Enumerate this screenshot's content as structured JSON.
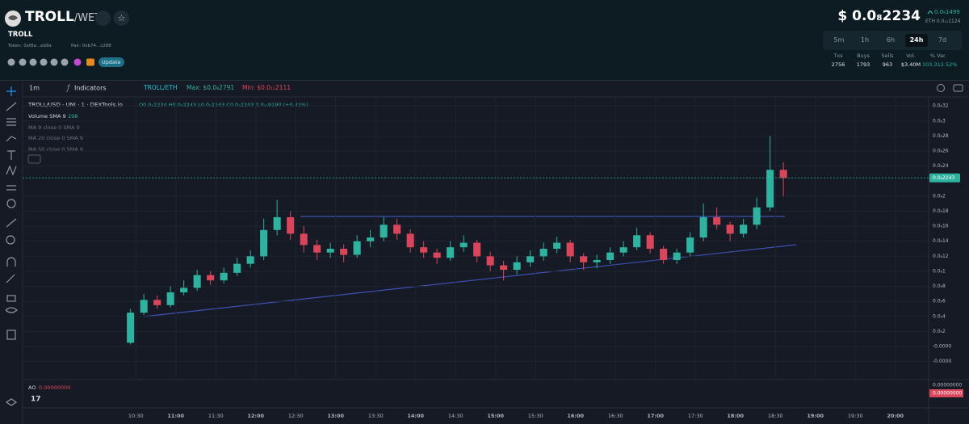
{
  "header": {
    "symbol": "TROLL",
    "quote": "/WETH",
    "name": "TROLL",
    "token": "Token: 0xf8a...eb9a",
    "pair": "Pair: 0xb74...c288",
    "update": "Update",
    "price": "$ 0.0₈2234",
    "change": "0.0₉1499",
    "eth_price": "ETH 0.0₁₂1124",
    "timeframes": [
      "5m",
      "1h",
      "6h",
      "24h",
      "7d"
    ],
    "active_timeframe": "24h",
    "stats": [
      {
        "label": "Txs",
        "value": "2756"
      },
      {
        "label": "Buys",
        "value": "1793"
      },
      {
        "label": "Sells",
        "value": "963"
      },
      {
        "label": "Vol.",
        "value": "$3.40M"
      },
      {
        "label": "% Var.",
        "value": "103,312.52%"
      }
    ]
  },
  "toolbar": {
    "interval": "1m",
    "indicators": "Indicators",
    "pair": "TROLL/ETH",
    "max": "Max: $0.0₈2791",
    "min": "Min: $0.0₁₁2111"
  },
  "legend": {
    "source": "TROLL/USD · UNI · 1 · DEXTools.io",
    "ohlc": "O0.0₈2234 H0.0₈2243 L0.0₈2243 C0.0₈2243 0.0₁₁9190 (+0.41%)",
    "volume": "Volume SMA 9",
    "volume_value": "198",
    "ma9": "MA 9 close 0 SMA 9",
    "ma20": "MA 20 close 0 SMA 9",
    "ma50": "MA 50 close 0 SMA 9"
  },
  "ao": {
    "label": "AO",
    "value": "0.00000000",
    "axis_label": "0.00000000",
    "axis_tag": "0.00000000"
  },
  "chart_data": {
    "type": "candlestick",
    "x": [
      "10:26",
      "10:36",
      "10:46",
      "10:56",
      "11:06",
      "11:16",
      "11:26",
      "11:36",
      "11:46",
      "11:56",
      "12:06",
      "12:16",
      "12:26",
      "12:36",
      "12:46",
      "12:56",
      "13:06",
      "13:16",
      "13:26",
      "13:36",
      "13:46",
      "13:56",
      "14:06",
      "14:16",
      "14:26",
      "14:36",
      "14:46",
      "14:56",
      "15:06",
      "15:16",
      "15:26",
      "15:36",
      "15:46",
      "15:56",
      "16:06",
      "16:16",
      "16:26",
      "16:36",
      "16:46",
      "16:56",
      "17:06",
      "17:16",
      "17:26",
      "17:36",
      "17:46",
      "17:56",
      "18:06",
      "18:16",
      "18:26",
      "18:36"
    ],
    "open": [
      5e-11,
      4.5e-10,
      6.2e-10,
      5.5e-10,
      7.2e-10,
      7.8e-10,
      9.5e-10,
      8.8e-10,
      9.8e-10,
      1.1e-09,
      1.2e-09,
      1.55e-09,
      1.72e-09,
      1.5e-09,
      1.35e-09,
      1.25e-09,
      1.3e-09,
      1.22e-09,
      1.4e-09,
      1.45e-09,
      1.62e-09,
      1.5e-09,
      1.32e-09,
      1.25e-09,
      1.18e-09,
      1.32e-09,
      1.38e-09,
      1.2e-09,
      1.08e-09,
      1.02e-09,
      1.12e-09,
      1.2e-09,
      1.3e-09,
      1.38e-09,
      1.2e-09,
      1.12e-09,
      1.15e-09,
      1.25e-09,
      1.32e-09,
      1.48e-09,
      1.3e-09,
      1.15e-09,
      1.25e-09,
      1.45e-09,
      1.72e-09,
      1.62e-09,
      1.5e-09,
      1.62e-09,
      1.85e-09,
      2.35e-09
    ],
    "high": [
      5e-10,
      7e-10,
      6.8e-10,
      8e-10,
      8.8e-10,
      1.02e-09,
      1e-09,
      1.05e-09,
      1.18e-09,
      1.28e-09,
      1.7e-09,
      1.95e-09,
      1.8e-09,
      1.6e-09,
      1.42e-09,
      1.38e-09,
      1.36e-09,
      1.48e-09,
      1.55e-09,
      1.72e-09,
      1.7e-09,
      1.56e-09,
      1.4e-09,
      1.3e-09,
      1.4e-09,
      1.48e-09,
      1.42e-09,
      1.26e-09,
      1.14e-09,
      1.2e-09,
      1.28e-09,
      1.38e-09,
      1.46e-09,
      1.42e-09,
      1.24e-09,
      1.22e-09,
      1.32e-09,
      1.4e-09,
      1.58e-09,
      1.52e-09,
      1.34e-09,
      1.3e-09,
      1.52e-09,
      1.9e-09,
      1.85e-09,
      1.66e-09,
      1.7e-09,
      1.98e-09,
      2.8e-09,
      2.45e-09
    ],
    "low": [
      3e-11,
      4.2e-10,
      5e-10,
      5.2e-10,
      6.8e-10,
      7.4e-10,
      8.2e-10,
      8.4e-10,
      9.4e-10,
      1.05e-09,
      1.15e-09,
      1.48e-09,
      1.42e-09,
      1.25e-09,
      1.15e-09,
      1.18e-09,
      1.12e-09,
      1.18e-09,
      1.32e-09,
      1.4e-09,
      1.42e-09,
      1.25e-09,
      1.18e-09,
      1.1e-09,
      1.14e-09,
      1.26e-09,
      1.12e-09,
      1e-09,
      8.8e-10,
      9.6e-10,
      1.06e-09,
      1.14e-09,
      1.24e-09,
      1.12e-09,
      1.02e-09,
      1.04e-09,
      1.1e-09,
      1.2e-09,
      1.28e-09,
      1.24e-09,
      1.1e-09,
      1.1e-09,
      1.2e-09,
      1.4e-09,
      1.56e-09,
      1.4e-09,
      1.45e-09,
      1.56e-09,
      1.8e-09,
      2e-09
    ],
    "close": [
      4.5e-10,
      6.2e-10,
      5.5e-10,
      7.2e-10,
      7.8e-10,
      9.5e-10,
      8.8e-10,
      9.8e-10,
      1.1e-09,
      1.2e-09,
      1.55e-09,
      1.72e-09,
      1.5e-09,
      1.35e-09,
      1.25e-09,
      1.3e-09,
      1.22e-09,
      1.4e-09,
      1.45e-09,
      1.62e-09,
      1.5e-09,
      1.32e-09,
      1.25e-09,
      1.18e-09,
      1.32e-09,
      1.38e-09,
      1.2e-09,
      1.08e-09,
      1.02e-09,
      1.12e-09,
      1.2e-09,
      1.3e-09,
      1.38e-09,
      1.2e-09,
      1.12e-09,
      1.15e-09,
      1.25e-09,
      1.32e-09,
      1.48e-09,
      1.3e-09,
      1.15e-09,
      1.25e-09,
      1.45e-09,
      1.72e-09,
      1.62e-09,
      1.5e-09,
      1.62e-09,
      1.85e-09,
      2.35e-09,
      2.243e-09
    ],
    "up_color": "#2fb3a0",
    "down_color": "#d9465b",
    "ylim": [
      -4.4e-10,
      3.32e-09
    ],
    "yticks": [
      {
        "value": 3.2e-09,
        "label": "0.0₈32"
      },
      {
        "value": 3e-09,
        "label": "0.0₈3"
      },
      {
        "value": 2.8e-09,
        "label": "0.0₈28"
      },
      {
        "value": 2.6e-09,
        "label": "0.0₈26"
      },
      {
        "value": 2.4e-09,
        "label": "0.0₈24"
      },
      {
        "value": 2e-09,
        "label": "0.0₈2"
      },
      {
        "value": 1.8e-09,
        "label": "0.0₈18"
      },
      {
        "value": 1.6e-09,
        "label": "0.0₈16"
      },
      {
        "value": 1.4e-09,
        "label": "0.0₈14"
      },
      {
        "value": 1.2e-09,
        "label": "0.0₈12"
      },
      {
        "value": 1e-09,
        "label": "0.0₈1"
      },
      {
        "value": 8e-10,
        "label": "0.0₉8"
      },
      {
        "value": 6e-10,
        "label": "0.0₉6"
      },
      {
        "value": 4e-10,
        "label": "0.0₉4"
      },
      {
        "value": 2e-10,
        "label": "0.0₉2"
      },
      {
        "value": 0,
        "label": "-0.0000"
      },
      {
        "value": -2e-10,
        "label": "-0.0000"
      }
    ],
    "xlim": [
      "09:05",
      "20:25"
    ],
    "xticks": [
      "10:30",
      "11:00",
      "11:30",
      "12:00",
      "12:30",
      "13:00",
      "13:30",
      "14:00",
      "14:30",
      "15:00",
      "15:30",
      "16:00",
      "16:30",
      "17:00",
      "17:30",
      "18:00",
      "18:30",
      "19:00",
      "19:30",
      "20:00"
    ],
    "last_price": {
      "value": 2.243e-09,
      "label": "0.0₈2243"
    },
    "grid": true
  }
}
